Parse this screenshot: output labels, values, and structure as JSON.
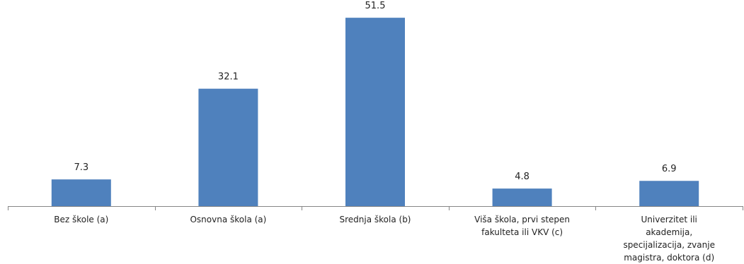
{
  "chart_data": {
    "type": "bar",
    "categories": [
      "Bez škole (a)",
      "Osnovna škola (a)",
      "Srednja škola (b)",
      "Viša škola, prvi stepen fakulteta ili VKV (c)",
      "Univerzitet ili akademija, specijalizacija, zvanje magistra, doktora (d)"
    ],
    "category_lines": [
      [
        "Bez škole (a)"
      ],
      [
        "Osnovna škola (a)"
      ],
      [
        "Srednja škola (b)"
      ],
      [
        "Viša škola, prvi stepen",
        "fakulteta ili VKV (c)"
      ],
      [
        "Univerzitet ili",
        "akademija,",
        "specijalizacija, zvanje",
        "magistra, doktora (d)"
      ]
    ],
    "values": [
      7.3,
      32.1,
      51.5,
      4.8,
      6.9
    ],
    "data_labels": [
      "7.3",
      "32.1",
      "51.5",
      "4.8",
      "6.9"
    ],
    "ylim": [
      0,
      55
    ],
    "grid": false,
    "legend": "none",
    "bar_color": "#4f81bd",
    "axis_color": "#868686"
  }
}
